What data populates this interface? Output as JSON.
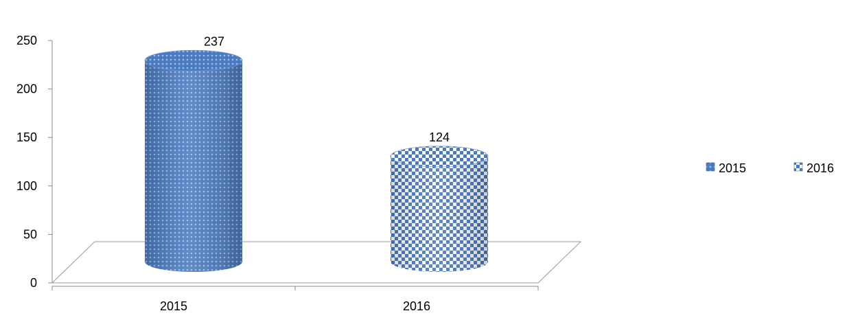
{
  "chart_data": {
    "type": "bar",
    "style": "3d-cylinder",
    "categories": [
      "2015",
      "2016"
    ],
    "values": [
      237,
      124
    ],
    "data_labels": [
      "237",
      "124"
    ],
    "series_colors": [
      "#4f81bd",
      "#4f81bd"
    ],
    "series_fills": [
      "dense-dot-pattern",
      "checker-pattern"
    ],
    "ylim": [
      0,
      250
    ],
    "yticks": [
      "0",
      "50",
      "100",
      "150",
      "200",
      "250"
    ],
    "xlabel": "",
    "ylabel": "",
    "title": "",
    "grid": false,
    "legend_position": "right",
    "legend": [
      "2015",
      "2016"
    ]
  }
}
